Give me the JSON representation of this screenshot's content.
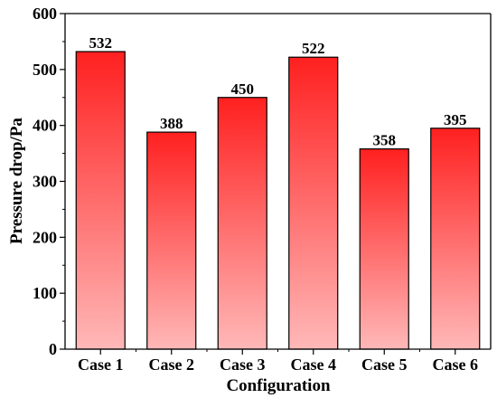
{
  "chart_data": {
    "type": "bar",
    "categories": [
      "Case 1",
      "Case 2",
      "Case 3",
      "Case 4",
      "Case 5",
      "Case 6"
    ],
    "values": [
      532,
      388,
      450,
      522,
      358,
      395
    ],
    "data_labels": [
      "532",
      "388",
      "450",
      "522",
      "358",
      "395"
    ],
    "xlabel": "Configuration",
    "ylabel": "Pressure drop/Pa",
    "ylim": [
      0,
      600
    ],
    "yticks": [
      0,
      100,
      200,
      300,
      400,
      500,
      600
    ],
    "grid": false,
    "bar_gradient_top": "#ff2020",
    "bar_gradient_bottom": "#ffb8b8",
    "bar_stroke": "#000000"
  }
}
